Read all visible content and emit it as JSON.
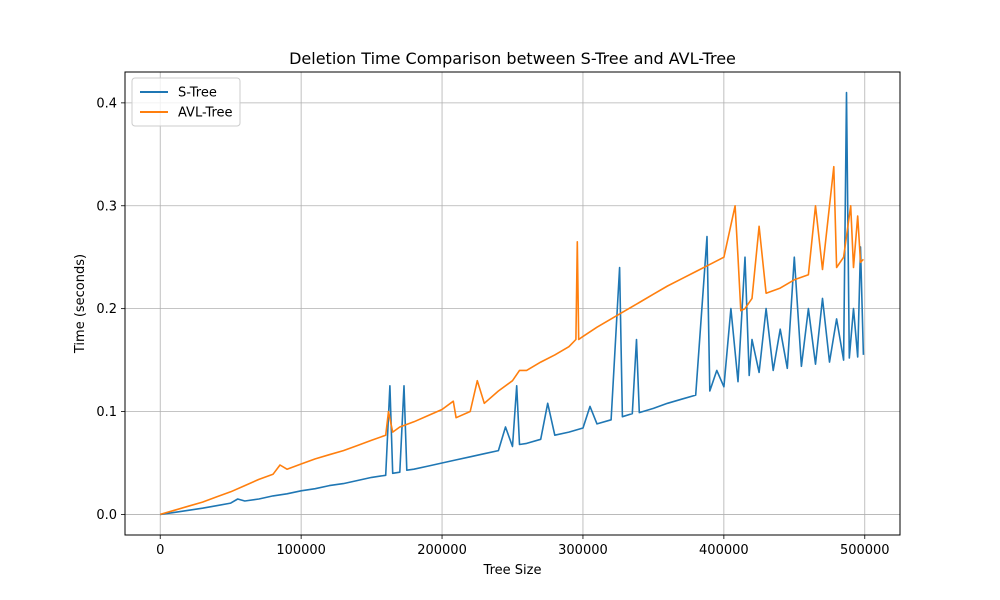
{
  "chart_data": {
    "type": "line",
    "title": "Deletion Time Comparison between S-Tree and AVL-Tree",
    "xlabel": "Tree Size",
    "ylabel": "Time (seconds)",
    "xlim": [
      -25000,
      525000
    ],
    "ylim": [
      -0.02,
      0.43
    ],
    "xticks": [
      0,
      100000,
      200000,
      300000,
      400000,
      500000
    ],
    "xtick_labels": [
      "0",
      "100000",
      "200000",
      "300000",
      "400000",
      "500000"
    ],
    "yticks": [
      0.0,
      0.1,
      0.2,
      0.3,
      0.4
    ],
    "ytick_labels": [
      "0.0",
      "0.1",
      "0.2",
      "0.3",
      "0.4"
    ],
    "grid": true,
    "legend_position": "top-left",
    "series": [
      {
        "name": "S-Tree",
        "color": "#1f77b4",
        "points": [
          [
            0,
            0.0
          ],
          [
            10000,
            0.002
          ],
          [
            20000,
            0.004
          ],
          [
            30000,
            0.006
          ],
          [
            40000,
            0.0085
          ],
          [
            50000,
            0.011
          ],
          [
            55000,
            0.015
          ],
          [
            60000,
            0.013
          ],
          [
            70000,
            0.015
          ],
          [
            80000,
            0.018
          ],
          [
            90000,
            0.02
          ],
          [
            100000,
            0.023
          ],
          [
            110000,
            0.025
          ],
          [
            120000,
            0.028
          ],
          [
            130000,
            0.03
          ],
          [
            140000,
            0.033
          ],
          [
            150000,
            0.036
          ],
          [
            160000,
            0.038
          ],
          [
            163000,
            0.125
          ],
          [
            165000,
            0.04
          ],
          [
            170000,
            0.041
          ],
          [
            173000,
            0.125
          ],
          [
            175000,
            0.043
          ],
          [
            180000,
            0.044
          ],
          [
            190000,
            0.047
          ],
          [
            200000,
            0.05
          ],
          [
            210000,
            0.053
          ],
          [
            220000,
            0.056
          ],
          [
            230000,
            0.059
          ],
          [
            240000,
            0.062
          ],
          [
            245000,
            0.085
          ],
          [
            250000,
            0.066
          ],
          [
            253000,
            0.125
          ],
          [
            255000,
            0.068
          ],
          [
            260000,
            0.069
          ],
          [
            270000,
            0.073
          ],
          [
            275000,
            0.108
          ],
          [
            280000,
            0.077
          ],
          [
            290000,
            0.08
          ],
          [
            300000,
            0.084
          ],
          [
            305000,
            0.105
          ],
          [
            310000,
            0.088
          ],
          [
            320000,
            0.092
          ],
          [
            326000,
            0.24
          ],
          [
            328000,
            0.095
          ],
          [
            335000,
            0.098
          ],
          [
            338000,
            0.17
          ],
          [
            340000,
            0.099
          ],
          [
            350000,
            0.103
          ],
          [
            360000,
            0.108
          ],
          [
            370000,
            0.112
          ],
          [
            380000,
            0.116
          ],
          [
            388000,
            0.27
          ],
          [
            390000,
            0.12
          ],
          [
            395000,
            0.14
          ],
          [
            400000,
            0.124
          ],
          [
            405000,
            0.2
          ],
          [
            410000,
            0.129
          ],
          [
            415000,
            0.25
          ],
          [
            418000,
            0.135
          ],
          [
            420000,
            0.17
          ],
          [
            425000,
            0.138
          ],
          [
            430000,
            0.2
          ],
          [
            435000,
            0.14
          ],
          [
            440000,
            0.18
          ],
          [
            445000,
            0.142
          ],
          [
            450000,
            0.25
          ],
          [
            455000,
            0.144
          ],
          [
            460000,
            0.2
          ],
          [
            465000,
            0.146
          ],
          [
            470000,
            0.21
          ],
          [
            475000,
            0.148
          ],
          [
            480000,
            0.19
          ],
          [
            485000,
            0.15
          ],
          [
            487000,
            0.41
          ],
          [
            489000,
            0.152
          ],
          [
            492000,
            0.2
          ],
          [
            495000,
            0.153
          ],
          [
            497000,
            0.26
          ],
          [
            499000,
            0.155
          ]
        ]
      },
      {
        "name": "AVL-Tree",
        "color": "#ff7f0e",
        "points": [
          [
            0,
            0.0
          ],
          [
            10000,
            0.004
          ],
          [
            20000,
            0.008
          ],
          [
            30000,
            0.012
          ],
          [
            40000,
            0.017
          ],
          [
            50000,
            0.022
          ],
          [
            60000,
            0.028
          ],
          [
            70000,
            0.034
          ],
          [
            80000,
            0.039
          ],
          [
            85000,
            0.048
          ],
          [
            90000,
            0.044
          ],
          [
            100000,
            0.049
          ],
          [
            110000,
            0.054
          ],
          [
            120000,
            0.058
          ],
          [
            130000,
            0.062
          ],
          [
            140000,
            0.067
          ],
          [
            150000,
            0.072
          ],
          [
            160000,
            0.077
          ],
          [
            162000,
            0.1
          ],
          [
            165000,
            0.08
          ],
          [
            170000,
            0.085
          ],
          [
            180000,
            0.09
          ],
          [
            190000,
            0.096
          ],
          [
            200000,
            0.102
          ],
          [
            208000,
            0.11
          ],
          [
            210000,
            0.094
          ],
          [
            220000,
            0.1
          ],
          [
            225000,
            0.13
          ],
          [
            230000,
            0.108
          ],
          [
            240000,
            0.12
          ],
          [
            250000,
            0.13
          ],
          [
            255000,
            0.14
          ],
          [
            260000,
            0.14
          ],
          [
            270000,
            0.148
          ],
          [
            280000,
            0.155
          ],
          [
            290000,
            0.163
          ],
          [
            295000,
            0.17
          ],
          [
            296000,
            0.265
          ],
          [
            297000,
            0.17
          ],
          [
            300000,
            0.173
          ],
          [
            310000,
            0.182
          ],
          [
            320000,
            0.19
          ],
          [
            330000,
            0.198
          ],
          [
            340000,
            0.206
          ],
          [
            350000,
            0.214
          ],
          [
            360000,
            0.222
          ],
          [
            370000,
            0.229
          ],
          [
            380000,
            0.236
          ],
          [
            390000,
            0.243
          ],
          [
            400000,
            0.25
          ],
          [
            408000,
            0.3
          ],
          [
            410000,
            0.25
          ],
          [
            412000,
            0.198
          ],
          [
            415000,
            0.2
          ],
          [
            420000,
            0.21
          ],
          [
            425000,
            0.28
          ],
          [
            430000,
            0.215
          ],
          [
            440000,
            0.22
          ],
          [
            450000,
            0.228
          ],
          [
            460000,
            0.233
          ],
          [
            465000,
            0.3
          ],
          [
            470000,
            0.238
          ],
          [
            478000,
            0.338
          ],
          [
            480000,
            0.24
          ],
          [
            485000,
            0.25
          ],
          [
            490000,
            0.3
          ],
          [
            492000,
            0.24
          ],
          [
            495000,
            0.29
          ],
          [
            497000,
            0.245
          ],
          [
            499000,
            0.248
          ]
        ]
      }
    ]
  }
}
